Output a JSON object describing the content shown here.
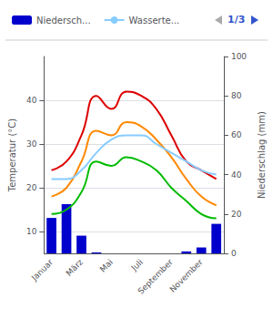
{
  "chart_data": {
    "type": "bar",
    "categories": [
      "Januar",
      null,
      "März",
      null,
      "Mai",
      null,
      "Juli",
      null,
      "September",
      null,
      "November",
      null
    ],
    "series": [
      {
        "name": "Niedersch...",
        "type": "bar",
        "axis": "y2",
        "color": "#0000CC",
        "values": [
          18,
          25,
          9,
          0.5,
          0,
          0,
          0,
          0,
          0,
          1,
          3,
          15
        ]
      },
      {
        "type": "line",
        "color": "#DD0000",
        "values": [
          24,
          26,
          32,
          41,
          38,
          42,
          41,
          38,
          32,
          26,
          24,
          22
        ]
      },
      {
        "type": "line",
        "color": "#FF8800",
        "values": [
          18,
          20,
          26,
          33,
          32,
          35,
          34,
          31,
          27,
          22,
          18,
          16
        ]
      },
      {
        "name": "Wasserte...",
        "type": "line",
        "color": "#88CCFF",
        "values": [
          22,
          22,
          24,
          28,
          31,
          32,
          32,
          30,
          28,
          26,
          24,
          23
        ]
      },
      {
        "type": "line",
        "color": "#00BB00",
        "values": [
          14,
          15,
          19,
          26,
          25,
          27,
          26,
          24,
          20,
          17,
          14,
          13
        ]
      }
    ],
    "ylabel": "Temperatur (°C)",
    "y2label": "Niederschlag (mm)",
    "ylim": [
      5,
      50
    ],
    "yticks": [
      10,
      20,
      30,
      40
    ],
    "y2lim": [
      0,
      100
    ],
    "y2ticks": [
      0,
      20,
      40,
      60,
      80,
      100
    ],
    "grid": true,
    "legend": "top",
    "annotations": [
      "1/3"
    ]
  }
}
